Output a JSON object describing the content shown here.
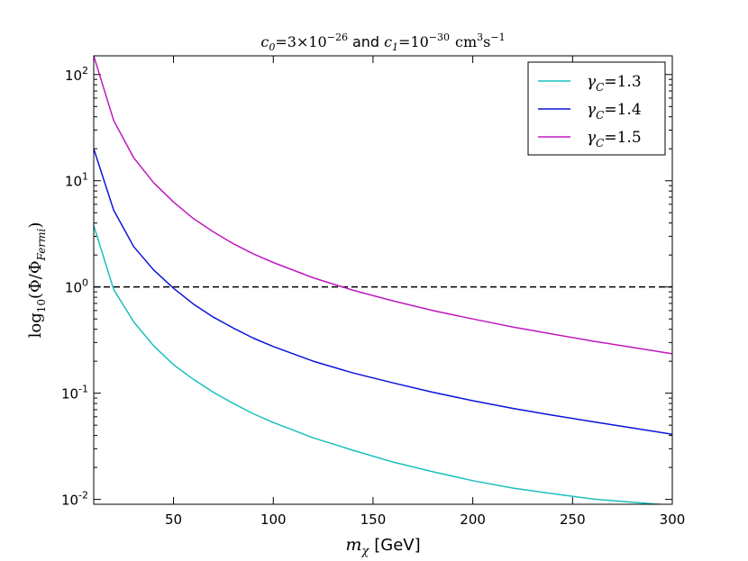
{
  "chart_data": {
    "type": "line",
    "title": {
      "c0_sym": "c",
      "c0_sub": "0",
      "c0_val": "=3×10",
      "c0_exp": "−26",
      "and": "and",
      "c1_sym": "c",
      "c1_sub": "1",
      "c1_val": "=10",
      "c1_exp": "−30",
      "unit_cm": "cm",
      "unit_cm_exp": "3",
      "unit_s": "s",
      "unit_s_exp": "−1"
    },
    "xlabel": {
      "sym": "m",
      "sub": "χ",
      "unit": "[GeV]"
    },
    "ylabel": {
      "log": "log",
      "log_sub": "10",
      "body": "(Φ/Φ",
      "sub": "Fermi",
      "close": ")"
    },
    "xlim": [
      10,
      300
    ],
    "ylim": [
      0.009,
      150
    ],
    "yscale": "log",
    "x_ticks": [
      50,
      100,
      150,
      200,
      250,
      300
    ],
    "x_tick_labels": [
      "50",
      "100",
      "150",
      "200",
      "250",
      "300"
    ],
    "y_ticks": [
      {
        "value": 0.01,
        "base": "10",
        "exp": "-2"
      },
      {
        "value": 0.1,
        "base": "10",
        "exp": "-1"
      },
      {
        "value": 1,
        "base": "10",
        "exp": "0"
      },
      {
        "value": 10,
        "base": "10",
        "exp": "1"
      },
      {
        "value": 100,
        "base": "10",
        "exp": "2"
      }
    ],
    "reference_line": {
      "y": 1.0,
      "style": "dashed",
      "color": "#000000"
    },
    "legend_position": "top-right",
    "x": [
      10,
      20,
      30,
      40,
      50,
      60,
      70,
      80,
      90,
      100,
      120,
      140,
      160,
      180,
      200,
      220,
      240,
      260,
      280,
      300
    ],
    "series": [
      {
        "name_sym": "γ",
        "name_sub": "C",
        "name_val": "=1.3",
        "color": "#1abfbf",
        "values": [
          3.8,
          0.95,
          0.47,
          0.28,
          0.185,
          0.135,
          0.102,
          0.08,
          0.064,
          0.053,
          0.038,
          0.029,
          0.0225,
          0.0182,
          0.015,
          0.0128,
          0.0113,
          0.0101,
          0.0094,
          0.0088
        ]
      },
      {
        "name_sym": "γ",
        "name_sub": "C",
        "name_val": "=1.4",
        "color": "#0a14d9",
        "values": [
          20,
          5.3,
          2.4,
          1.45,
          0.97,
          0.69,
          0.52,
          0.41,
          0.33,
          0.275,
          0.2,
          0.155,
          0.125,
          0.102,
          0.085,
          0.072,
          0.062,
          0.054,
          0.047,
          0.041
        ]
      },
      {
        "name_sym": "γ",
        "name_sub": "C",
        "name_val": "=1.5",
        "color": "#bf1abf",
        "values": [
          150,
          37,
          16.5,
          9.6,
          6.3,
          4.4,
          3.3,
          2.55,
          2.05,
          1.7,
          1.22,
          0.93,
          0.74,
          0.6,
          0.5,
          0.42,
          0.36,
          0.31,
          0.27,
          0.235
        ]
      }
    ]
  }
}
